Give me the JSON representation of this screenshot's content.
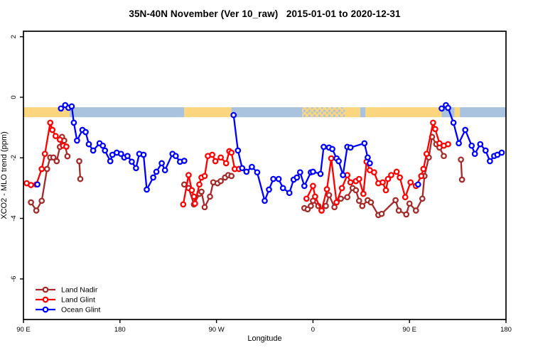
{
  "title": "35N-40N November (Ver 10_raw)   2015-01-01 to 2020-12-31",
  "chart_data": {
    "type": "line",
    "title": "35N-40N November (Ver 10_raw)   2015-01-01 to 2020-12-31",
    "xlabel": "Longitude",
    "ylabel": "XCO2 - MLO trend (ppm)",
    "xlim": [
      90,
      540
    ],
    "ylim": [
      -7.34,
      2.18
    ],
    "grid": false,
    "x_ticks": [
      {
        "value": 90,
        "label": "90 E"
      },
      {
        "value": 180,
        "label": "180"
      },
      {
        "value": 270,
        "label": "90 W"
      },
      {
        "value": 360,
        "label": "0"
      },
      {
        "value": 450,
        "label": "90 E"
      },
      {
        "value": 540,
        "label": "180"
      }
    ],
    "y_ticks": [
      {
        "value": 2,
        "label": "2"
      },
      {
        "value": 0,
        "label": "0"
      },
      {
        "value": -2,
        "label": "-2"
      },
      {
        "value": -4,
        "label": "-4"
      },
      {
        "value": -6,
        "label": "-6"
      }
    ],
    "coverage_band": {
      "y_top": -0.33,
      "y_bottom": -0.66,
      "land_color": "#FCD67E",
      "ocean_color": "#A9C3DE",
      "segments": [
        {
          "cover": "land",
          "from": 90,
          "to": 133
        },
        {
          "cover": "ocean",
          "from": 133,
          "to": 240
        },
        {
          "cover": "land",
          "from": 240,
          "to": 284
        },
        {
          "cover": "ocean",
          "from": 284,
          "to": 350
        },
        {
          "cover": "mixed",
          "from": 350,
          "to": 390
        },
        {
          "cover": "land",
          "from": 390,
          "to": 404
        },
        {
          "cover": "ocean",
          "from": 404,
          "to": 409
        },
        {
          "cover": "land",
          "from": 409,
          "to": 480
        },
        {
          "cover": "ocean",
          "from": 480,
          "to": 492
        },
        {
          "cover": "land",
          "from": 492,
          "to": 497
        },
        {
          "cover": "ocean",
          "from": 497,
          "to": 540
        }
      ]
    },
    "legend": {
      "position": "bottom-left"
    },
    "series": [
      {
        "name": "Land Nadir",
        "color": "#A52A2A",
        "segments": [
          [
            [
              97,
              -3.47
            ],
            [
              102,
              -3.74
            ],
            [
              107,
              -3.42
            ],
            [
              112,
              -2.37
            ],
            [
              115,
              -1.99
            ],
            [
              118,
              -1.99
            ],
            [
              121,
              -2.11
            ],
            [
              124,
              -1.64
            ],
            [
              126,
              -1.31
            ],
            [
              128,
              -1.43
            ],
            [
              131,
              -1.95
            ]
          ],
          [
            [
              142,
              -2.11
            ],
            [
              143,
              -2.7
            ]
          ],
          [
            [
              240,
              -2.88
            ],
            [
              244,
              -3.0
            ],
            [
              249,
              -3.54
            ],
            [
              254,
              -3.19
            ],
            [
              256,
              -3.12
            ],
            [
              259,
              -3.63
            ],
            [
              264,
              -3.28
            ],
            [
              267,
              -2.81
            ],
            [
              271,
              -2.84
            ],
            [
              274,
              -2.77
            ],
            [
              278,
              -2.65
            ],
            [
              281,
              -2.57
            ],
            [
              284,
              -2.6
            ]
          ],
          [
            [
              352,
              -3.66
            ],
            [
              355,
              -3.7
            ],
            [
              358,
              -3.59
            ],
            [
              360,
              -3.42
            ],
            [
              365,
              -3.59
            ],
            [
              368,
              -3.74
            ],
            [
              372,
              -3.59
            ],
            [
              375,
              -3.23
            ],
            [
              380,
              -3.63
            ],
            [
              386,
              -3.35
            ],
            [
              392,
              -3.3
            ],
            [
              397,
              -3.0
            ],
            [
              400,
              -3.07
            ],
            [
              403,
              -3.42
            ],
            [
              406,
              -3.59
            ],
            [
              411,
              -3.4
            ],
            [
              414,
              -3.47
            ],
            [
              421,
              -3.89
            ],
            [
              424,
              -3.85
            ],
            [
              437,
              -3.4
            ],
            [
              440,
              -3.74
            ],
            [
              447,
              -3.87
            ],
            [
              450,
              -3.51
            ],
            [
              456,
              -3.74
            ],
            [
              462,
              -3.35
            ],
            [
              464,
              -2.6
            ],
            [
              468,
              -1.99
            ],
            [
              471,
              -1.31
            ],
            [
              475,
              -1.55
            ],
            [
              478,
              -1.66
            ],
            [
              482,
              -1.94
            ]
          ],
          [
            [
              498,
              -2.06
            ],
            [
              499,
              -2.72
            ]
          ]
        ]
      },
      {
        "name": "Land Glint",
        "color": "#FF0000",
        "segments": [
          [
            [
              93,
              -2.84
            ],
            [
              97,
              -2.9
            ],
            [
              102,
              -2.88
            ],
            [
              107,
              -2.37
            ],
            [
              110,
              -1.87
            ],
            [
              115,
              -0.84
            ],
            [
              117,
              -1.08
            ],
            [
              120,
              -1.28
            ],
            [
              124,
              -1.4
            ],
            [
              127,
              -1.6
            ],
            [
              130,
              -1.63
            ]
          ],
          [
            [
              239,
              -3.54
            ],
            [
              244,
              -2.57
            ],
            [
              247,
              -3.07
            ],
            [
              249,
              -3.28
            ],
            [
              250,
              -3.51
            ],
            [
              254,
              -2.88
            ],
            [
              256,
              -2.65
            ],
            [
              259,
              -2.6
            ],
            [
              262,
              -1.94
            ],
            [
              266,
              -1.9
            ],
            [
              269,
              -2.11
            ],
            [
              274,
              -1.99
            ],
            [
              279,
              -2.18
            ],
            [
              282,
              -1.78
            ],
            [
              284,
              -1.83
            ],
            [
              287,
              -2.37
            ],
            [
              291,
              -2.37
            ]
          ],
          [
            [
              354,
              -3.35
            ],
            [
              360,
              -2.93
            ],
            [
              362,
              -3.28
            ],
            [
              368,
              -3.74
            ],
            [
              373,
              -3.04
            ],
            [
              377,
              -2.02
            ],
            [
              382,
              -3.47
            ],
            [
              387,
              -3.0
            ],
            [
              392,
              -2.57
            ],
            [
              395,
              -2.81
            ],
            [
              400,
              -2.77
            ],
            [
              403,
              -2.7
            ],
            [
              407,
              -3.19
            ],
            [
              410,
              -2.13
            ],
            [
              413,
              -2.41
            ],
            [
              417,
              -2.48
            ],
            [
              421,
              -2.84
            ],
            [
              425,
              -2.81
            ],
            [
              428,
              -3.07
            ],
            [
              430,
              -2.7
            ],
            [
              433,
              -2.57
            ],
            [
              438,
              -2.46
            ],
            [
              441,
              -2.65
            ],
            [
              446,
              -3.3
            ],
            [
              451,
              -2.81
            ],
            [
              456,
              -2.93
            ],
            [
              461,
              -2.6
            ],
            [
              463,
              -2.37
            ],
            [
              466,
              -1.87
            ],
            [
              472,
              -0.84
            ],
            [
              474,
              -1.05
            ],
            [
              478,
              -1.52
            ],
            [
              482,
              -1.6
            ],
            [
              486,
              -1.55
            ]
          ]
        ]
      },
      {
        "name": "Ocean Glint",
        "color": "#0000FF",
        "segments": [
          [
            [
              103,
              -2.88
            ]
          ],
          [
            [
              125,
              -0.37
            ],
            [
              129,
              -0.26
            ],
            [
              132,
              -0.35
            ],
            [
              135,
              -0.3
            ],
            [
              137,
              -0.84
            ],
            [
              140,
              -1.43
            ],
            [
              145,
              -1.08
            ],
            [
              148,
              -1.15
            ],
            [
              151,
              -1.55
            ],
            [
              155,
              -1.76
            ],
            [
              161,
              -1.52
            ],
            [
              164,
              -1.6
            ],
            [
              166,
              -1.76
            ],
            [
              171,
              -2.11
            ],
            [
              173,
              -1.9
            ],
            [
              177,
              -1.83
            ],
            [
              181,
              -1.87
            ],
            [
              184,
              -1.99
            ],
            [
              187,
              -1.94
            ],
            [
              191,
              -2.13
            ],
            [
              195,
              -2.34
            ],
            [
              198,
              -1.87
            ],
            [
              202,
              -1.9
            ],
            [
              205,
              -3.05
            ],
            [
              211,
              -2.65
            ],
            [
              214,
              -2.46
            ],
            [
              219,
              -2.18
            ],
            [
              222,
              -2.41
            ],
            [
              229,
              -1.87
            ],
            [
              232,
              -1.94
            ],
            [
              236,
              -2.13
            ],
            [
              240,
              -2.1
            ]
          ],
          [
            [
              286,
              -0.59
            ],
            [
              290,
              -1.76
            ],
            [
              294,
              -2.34
            ],
            [
              298,
              -2.46
            ],
            [
              303,
              -2.3
            ],
            [
              308,
              -2.48
            ],
            [
              315,
              -3.42
            ],
            [
              319,
              -3.05
            ],
            [
              323,
              -2.7
            ],
            [
              328,
              -2.7
            ],
            [
              332,
              -3.0
            ],
            [
              338,
              -3.16
            ],
            [
              342,
              -2.72
            ],
            [
              345,
              -2.65
            ],
            [
              348,
              -2.48
            ],
            [
              352,
              -2.93
            ],
            [
              358,
              -2.48
            ],
            [
              360,
              -2.46
            ],
            [
              367,
              -2.53
            ],
            [
              370,
              -1.64
            ],
            [
              375,
              -1.66
            ],
            [
              378,
              -1.71
            ],
            [
              382,
              -2.02
            ],
            [
              384,
              -2.11
            ],
            [
              388,
              -2.57
            ],
            [
              392,
              -1.64
            ],
            [
              395,
              -1.66
            ],
            [
              408,
              -1.52
            ],
            [
              411,
              -1.99
            ],
            [
              413,
              -2.18
            ]
          ],
          [
            [
              458,
              -2.88
            ]
          ],
          [
            [
              480,
              -0.37
            ],
            [
              484,
              -0.26
            ],
            [
              486,
              -0.35
            ],
            [
              491,
              -0.84
            ],
            [
              496,
              -1.52
            ],
            [
              502,
              -1.08
            ],
            [
              508,
              -1.6
            ],
            [
              511,
              -1.87
            ],
            [
              516,
              -1.55
            ],
            [
              521,
              -1.76
            ],
            [
              525,
              -2.11
            ],
            [
              529,
              -1.94
            ],
            [
              532,
              -1.9
            ],
            [
              536,
              -1.83
            ]
          ]
        ]
      }
    ]
  }
}
